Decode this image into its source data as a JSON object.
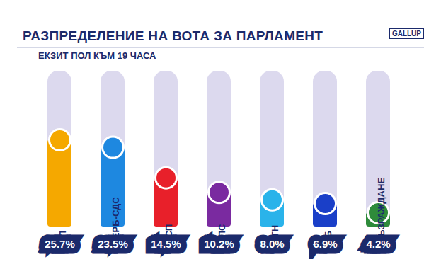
{
  "chart_data": {
    "type": "bar",
    "title": "РАЗПРЕДЕЛЕНИЕ НА ВОТА ЗА ПАРЛАМЕНТ",
    "subtitle": "ЕКЗИТ ПОЛ КЪМ 19 ЧАСА",
    "annotations": [
      "GALLUP"
    ],
    "categories": [
      "ПП",
      "ГЕРБ-СДС",
      "БСП",
      "ДПС",
      "ИТН",
      "ДБ",
      "ВЪЗРАЖДАНЕ"
    ],
    "values": [
      25.7,
      23.5,
      14.5,
      10.2,
      8.0,
      6.9,
      4.2
    ],
    "value_labels": [
      "25.7%",
      "23.5%",
      "14.5%",
      "10.2%",
      "8.0%",
      "6.9%",
      "4.2%"
    ],
    "colors": [
      "#f5a800",
      "#1e88e0",
      "#e8202a",
      "#7a2aa0",
      "#2ab3ea",
      "#1a3fc8",
      "#2e8b3a"
    ],
    "ylim": [
      0,
      46
    ],
    "yticks": [],
    "data_labels": true,
    "tick_labels": false,
    "grid": false
  }
}
